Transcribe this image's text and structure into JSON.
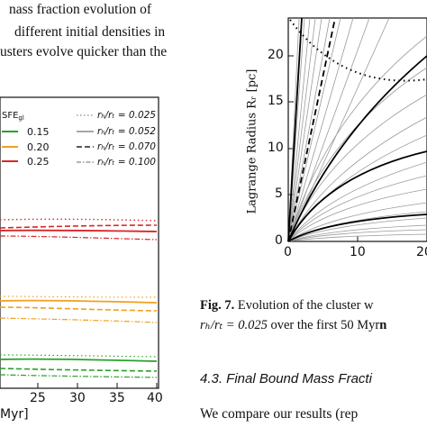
{
  "paragraph_lines": [
    "nass fraction evolution of",
    "different initial densities in",
    "usters evolve quicker than the"
  ],
  "left_chart": {
    "x_ticks": [
      "25",
      "30",
      "35",
      "40"
    ],
    "x_label_fragment": "Myr]",
    "legend": {
      "sfe_header": "SFEₗₗ",
      "sfe_items": [
        {
          "label": "0.15",
          "color": "#2ca02c"
        },
        {
          "label": "0.20",
          "color": "#f0a020"
        },
        {
          "label": "0.25",
          "color": "#d62728"
        }
      ],
      "ratio_items": [
        {
          "label": "rₕ/rₜ = 0.025",
          "style": "dotted"
        },
        {
          "label": "rₕ/rₜ = 0.052",
          "style": "solid"
        },
        {
          "label": "rₕ/rₜ = 0.070",
          "style": "dashed"
        },
        {
          "label": "rₕ/rₜ = 0.100",
          "style": "dashdot"
        }
      ]
    }
  },
  "right_chart": {
    "y_label": "Lagrange Radius Rᵣ [pc]",
    "y_ticks": [
      "0",
      "5",
      "10",
      "15",
      "20"
    ],
    "x_ticks": [
      "0",
      "10",
      "20"
    ]
  },
  "caption": {
    "fig_label": "Fig. 7.",
    "line1": "Evolution of the cluster w",
    "line2_math": "rₕ/rₜ = 0.025",
    "line2_rest": "over the first 50 Myr",
    "line2_bold": "n"
  },
  "section_heading": "4.3. Final Bound Mass Fracti",
  "last_line": "We compare our results (rep"
}
